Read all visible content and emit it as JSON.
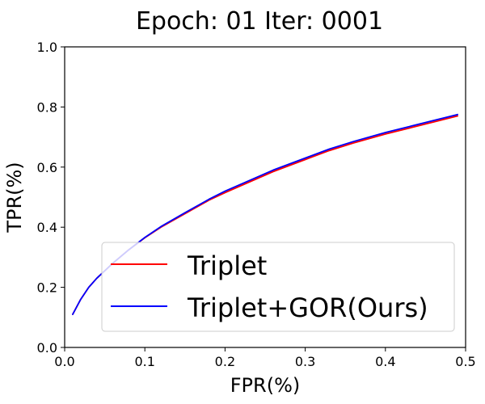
{
  "chart_data": {
    "type": "line",
    "title": "Epoch: 01 Iter: 0001",
    "xlabel": "FPR(%)",
    "ylabel": "TPR(%)",
    "xlim": [
      0.0,
      0.5
    ],
    "ylim": [
      0.0,
      1.0
    ],
    "xticks": [
      "0.0",
      "0.1",
      "0.2",
      "0.3",
      "0.4",
      "0.5"
    ],
    "yticks": [
      "0.0",
      "0.2",
      "0.4",
      "0.6",
      "0.8",
      "1.0"
    ],
    "grid": false,
    "legend_position": "lower-right",
    "series": [
      {
        "name": "Triplet",
        "color": "#ff0000",
        "x": [
          0.01,
          0.02,
          0.03,
          0.04,
          0.05,
          0.06,
          0.08,
          0.1,
          0.12,
          0.15,
          0.18,
          0.2,
          0.23,
          0.26,
          0.3,
          0.33,
          0.36,
          0.4,
          0.43,
          0.46,
          0.49
        ],
        "y": [
          0.11,
          0.16,
          0.2,
          0.23,
          0.255,
          0.28,
          0.325,
          0.365,
          0.4,
          0.445,
          0.49,
          0.515,
          0.55,
          0.585,
          0.625,
          0.655,
          0.68,
          0.71,
          0.73,
          0.75,
          0.77
        ]
      },
      {
        "name": "Triplet+GOR(Ours)",
        "color": "#0000ff",
        "x": [
          0.01,
          0.02,
          0.03,
          0.04,
          0.05,
          0.06,
          0.08,
          0.1,
          0.12,
          0.15,
          0.18,
          0.2,
          0.23,
          0.26,
          0.3,
          0.33,
          0.36,
          0.4,
          0.43,
          0.46,
          0.49
        ],
        "y": [
          0.11,
          0.16,
          0.2,
          0.23,
          0.255,
          0.28,
          0.325,
          0.366,
          0.402,
          0.448,
          0.493,
          0.52,
          0.555,
          0.59,
          0.63,
          0.66,
          0.685,
          0.715,
          0.735,
          0.755,
          0.775
        ]
      }
    ]
  }
}
